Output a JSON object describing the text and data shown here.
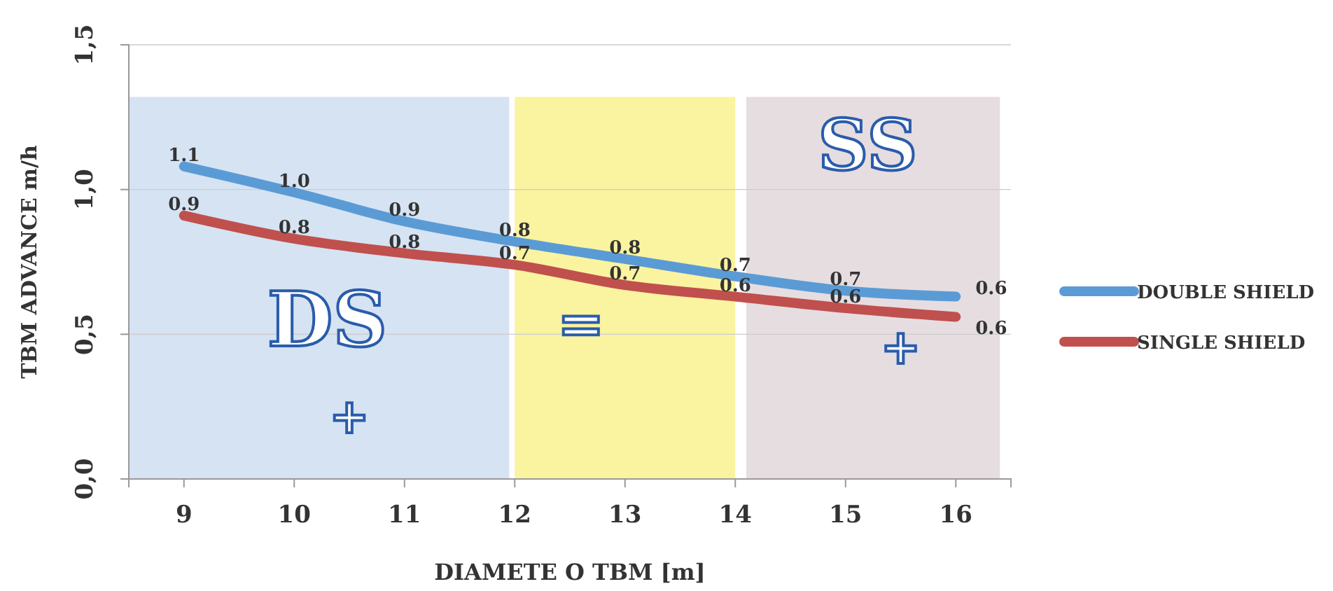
{
  "chart_data": {
    "type": "line",
    "xlabel": "DIAMETE O TBM [m]",
    "ylabel": "TBM ADVANCE m/h",
    "x": [
      9,
      10,
      11,
      12,
      13,
      14,
      15,
      16
    ],
    "xlim": [
      8.5,
      16.5
    ],
    "xticks": [
      9,
      10,
      11,
      12,
      13,
      14,
      15,
      16
    ],
    "ylim": [
      0,
      1.5
    ],
    "yticks": [
      {
        "value": 0,
        "label": "0,0"
      },
      {
        "value": 0.5,
        "label": "0,5"
      },
      {
        "value": 1,
        "label": "1,0"
      },
      {
        "value": 1.5,
        "label": "1,5"
      }
    ],
    "series": [
      {
        "name": "DOUBLE SHIELD",
        "color": "#5b9bd5",
        "values": [
          1.08,
          0.99,
          0.89,
          0.82,
          0.76,
          0.7,
          0.65,
          0.63
        ],
        "value_labels": [
          "1.1",
          "1.0",
          "0.9",
          "0.8",
          "0.8",
          "0.7",
          "0.7",
          "0.6"
        ]
      },
      {
        "name": "SINGLE SHIELD",
        "color": "#c0504d",
        "values": [
          0.91,
          0.83,
          0.78,
          0.74,
          0.67,
          0.63,
          0.59,
          0.56
        ],
        "value_labels": [
          "0.9",
          "0.8",
          "0.8",
          "0.7",
          "0.7",
          "0.6",
          "0.6",
          "0.6"
        ]
      }
    ],
    "bands": [
      {
        "axis": "x",
        "from": 8.5,
        "to": 11.95,
        "color": "#d5e3f3"
      },
      {
        "axis": "x",
        "from": 12,
        "to": 14,
        "color": "#faf3a0"
      },
      {
        "axis": "x",
        "from": 14.1,
        "to": 16.4,
        "color": "#e6dde1"
      }
    ],
    "annotations": [
      "DS",
      "SS",
      "=",
      "+",
      "+"
    ],
    "grid": "y",
    "legend": "right",
    "line_style": "solid",
    "marker": "none"
  }
}
